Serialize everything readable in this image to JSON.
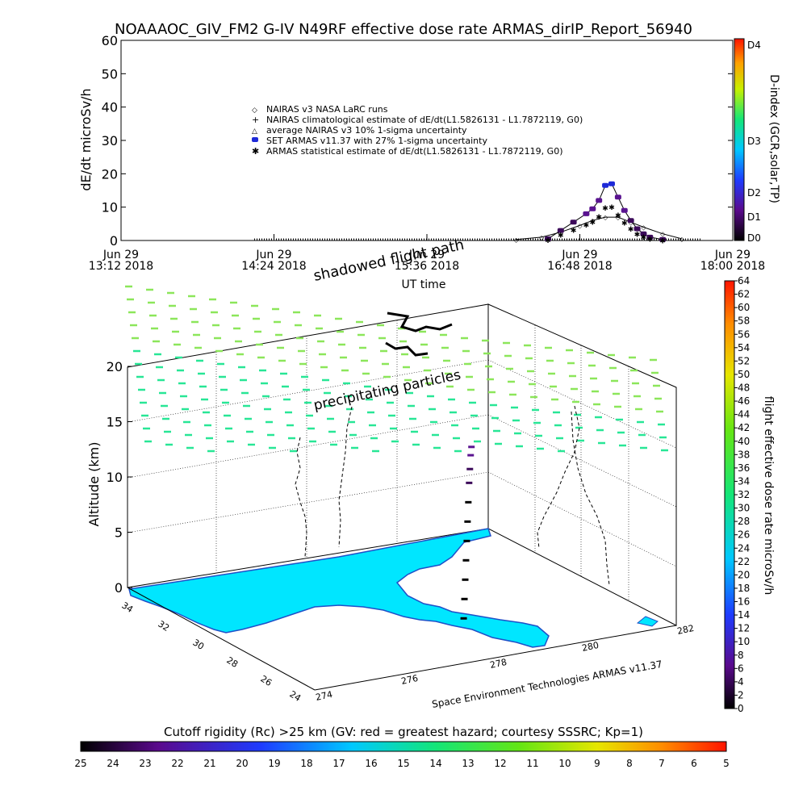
{
  "title": "NOAAAOC_GIV_FM2 G-IV    N49RF   effective dose rate ARMAS_dirIP_Report_56940",
  "chart_data": [
    {
      "type": "scatter",
      "ylabel": "dE/dt microSv/h",
      "xlabel": "UT time",
      "ylim": [
        0,
        60
      ],
      "yticks": [
        "0",
        "10",
        "20",
        "30",
        "40",
        "50",
        "60"
      ],
      "xticks": [
        {
          "line1": "Jun 29",
          "line2": "13:12 2018"
        },
        {
          "line1": "Jun 29",
          "line2": "14:24 2018"
        },
        {
          "line1": "Jun 29",
          "line2": "15:36 2018"
        },
        {
          "line1": "Jun 29",
          "line2": "16:48 2018"
        },
        {
          "line1": "Jun 29",
          "line2": "18:00 2018"
        }
      ],
      "legend": [
        "NAIRAS v3 NASA LaRC runs",
        "NAIRAS climatological estimate of dE/dt(L1.5826131 - L1.7872119, G0)",
        "average NAIRAS v3 10% 1-sigma uncertainty",
        "SET ARMAS v11.37 with 27% 1-sigma uncertainty",
        "ARMAS statistical estimate of dE/dt(L1.5826131 - L1.7872119, G0)"
      ],
      "legend_position": "upper-center",
      "armas_x_hours": [
        16.55,
        16.65,
        16.75,
        16.85,
        16.9,
        16.95,
        17.0,
        17.05,
        17.1,
        17.15,
        17.2,
        17.25,
        17.3,
        17.35,
        17.45
      ],
      "armas_y": [
        0.5,
        3.0,
        5.5,
        8.0,
        9.5,
        12.0,
        16.5,
        17.0,
        13.0,
        9.0,
        6.0,
        3.5,
        2.0,
        1.0,
        0.3
      ],
      "nairas_x_hours": [
        16.3,
        16.5,
        16.65,
        16.8,
        16.9,
        17.0,
        17.1,
        17.2,
        17.3,
        17.45,
        17.6
      ],
      "nairas_y": [
        0.3,
        1.0,
        2.5,
        4.5,
        6.0,
        7.0,
        7.0,
        5.5,
        4.0,
        2.0,
        0.5
      ]
    },
    {
      "type": "colorbar",
      "label": "D-index (GCR,solar,TP)",
      "ticks": [
        "D0",
        "D1",
        "D2",
        "D3",
        "D4"
      ]
    },
    {
      "type": "scatter3d",
      "zlabel": "Altitude (km)",
      "zlim": [
        0,
        22
      ],
      "zticks": [
        "0",
        "5",
        "10",
        "15",
        "20"
      ],
      "lat_ticks": [
        "34",
        "32",
        "30",
        "28",
        "26",
        "24"
      ],
      "lon_ticks": [
        "274",
        "276",
        "278",
        "280",
        "282"
      ],
      "annotations": [
        "shadowed flight path",
        "precipitating particles"
      ],
      "credit": "Space Environment Technologies ARMAS v11.37",
      "flight_track": [
        {
          "lon": 278.6,
          "lat": 27.1,
          "alt": 0.5,
          "dose": 1
        },
        {
          "lon": 278.7,
          "lat": 27.3,
          "alt": 2.0,
          "dose": 1
        },
        {
          "lon": 278.8,
          "lat": 27.5,
          "alt": 3.5,
          "dose": 2
        },
        {
          "lon": 278.9,
          "lat": 27.7,
          "alt": 5.0,
          "dose": 2
        },
        {
          "lon": 279.0,
          "lat": 27.9,
          "alt": 6.5,
          "dose": 3
        },
        {
          "lon": 279.1,
          "lat": 28.1,
          "alt": 8.0,
          "dose": 3
        },
        {
          "lon": 279.2,
          "lat": 28.3,
          "alt": 9.5,
          "dose": 4
        },
        {
          "lon": 279.3,
          "lat": 28.5,
          "alt": 11.0,
          "dose": 6
        },
        {
          "lon": 279.4,
          "lat": 28.7,
          "alt": 12.0,
          "dose": 8
        },
        {
          "lon": 279.5,
          "lat": 28.9,
          "alt": 13.0,
          "dose": 10
        },
        {
          "lon": 279.6,
          "lat": 29.1,
          "alt": 13.5,
          "dose": 11
        }
      ]
    },
    {
      "type": "colorbar",
      "label": "flight effective dose rate microSv/h",
      "ticks": [
        "0",
        "2",
        "4",
        "6",
        "8",
        "10",
        "12",
        "14",
        "16",
        "18",
        "20",
        "22",
        "24",
        "26",
        "28",
        "30",
        "32",
        "34",
        "36",
        "38",
        "40",
        "42",
        "44",
        "46",
        "48",
        "50",
        "52",
        "54",
        "56",
        "58",
        "60",
        "62",
        "64"
      ]
    },
    {
      "type": "colorbar",
      "label": "Cutoff rigidity (Rc) >25 km (GV: red = greatest hazard; courtesy SSSRC; Kp=1)",
      "ticks": [
        "25",
        "24",
        "23",
        "22",
        "21",
        "20",
        "19",
        "18",
        "17",
        "16",
        "15",
        "14",
        "13",
        "12",
        "11",
        "10",
        "9",
        "8",
        "7",
        "6",
        "5"
      ]
    }
  ]
}
